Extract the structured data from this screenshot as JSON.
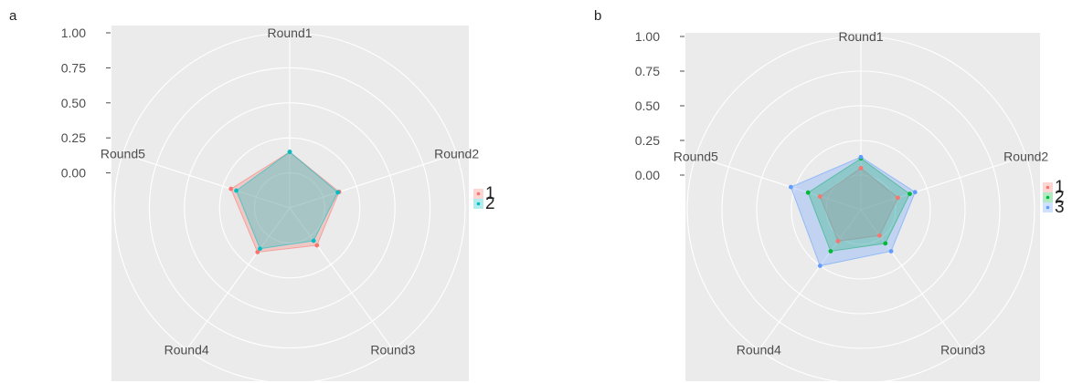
{
  "chart_data": [
    {
      "type": "radar",
      "panel_label": "a",
      "axes": [
        "Round1",
        "Round2",
        "Round3",
        "Round4",
        "Round5"
      ],
      "r_ticks": [
        "0.00",
        "0.25",
        "0.50",
        "0.75",
        "1.00"
      ],
      "r_range": [
        -0.25,
        1.0
      ],
      "grid": true,
      "legend_position": "right",
      "series": [
        {
          "name": "1",
          "color": "#F8766D",
          "values": [
            0.15,
            0.12,
            0.08,
            0.14,
            0.19
          ]
        },
        {
          "name": "2",
          "color": "#00BFC4",
          "values": [
            0.15,
            0.11,
            0.04,
            0.11,
            0.15
          ]
        }
      ]
    },
    {
      "type": "radar",
      "panel_label": "b",
      "axes": [
        "Round1",
        "Round2",
        "Round3",
        "Round4",
        "Round5"
      ],
      "r_ticks": [
        "0.00",
        "0.25",
        "0.50",
        "0.75",
        "1.00"
      ],
      "r_range": [
        -0.25,
        1.0
      ],
      "grid": true,
      "legend_position": "right",
      "series": [
        {
          "name": "1",
          "color": "#F8766D",
          "values": [
            0.05,
            0.03,
            -0.02,
            0.03,
            0.06
          ]
        },
        {
          "name": "2",
          "color": "#00BA38",
          "values": [
            0.12,
            0.12,
            0.05,
            0.12,
            0.15
          ]
        },
        {
          "name": "3",
          "color": "#619CFF",
          "values": [
            0.13,
            0.16,
            0.12,
            0.25,
            0.28
          ]
        }
      ]
    }
  ]
}
